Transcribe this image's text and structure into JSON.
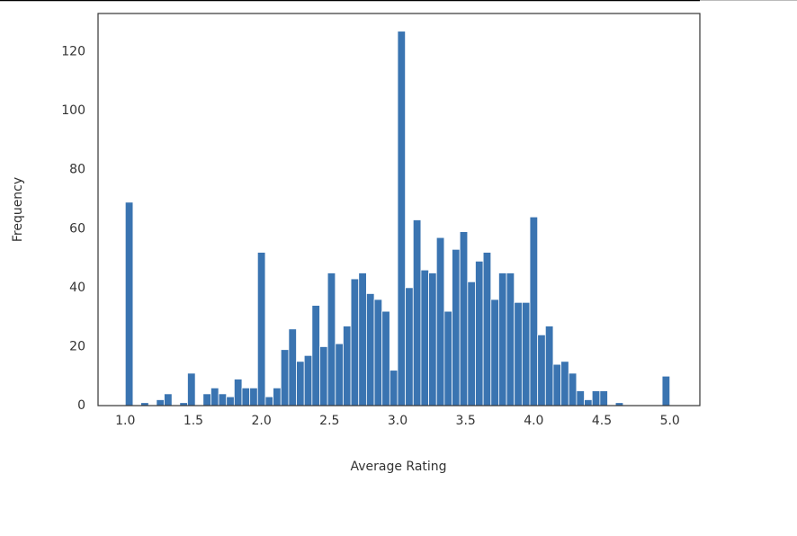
{
  "chart_data": {
    "type": "histogram",
    "x_label": "Average Rating",
    "y_label": "Frequency",
    "color": "#3a74b1",
    "grid": false,
    "bins": [
      1.0,
      1.0571,
      1.1143,
      1.1714,
      1.2286,
      1.2857,
      1.3429,
      1.4,
      1.4571,
      1.5143,
      1.5714,
      1.6286,
      1.6857,
      1.7429,
      1.8,
      1.8571,
      1.9143,
      1.9714,
      2.0286,
      2.0857,
      2.1429,
      2.2,
      2.2571,
      2.3143,
      2.3714,
      2.4286,
      2.4857,
      2.5429,
      2.6,
      2.6571,
      2.7143,
      2.7714,
      2.8286,
      2.8857,
      2.9429,
      3.0,
      3.0571,
      3.1143,
      3.1714,
      3.2286,
      3.2857,
      3.3429,
      3.4,
      3.4571,
      3.5143,
      3.5714,
      3.6286,
      3.6857,
      3.7429,
      3.8,
      3.8571,
      3.9143,
      3.9714,
      4.0286,
      4.0857,
      4.1429,
      4.2,
      4.2571,
      4.3143,
      4.3714,
      4.4286,
      4.4857,
      4.5429,
      4.6,
      4.6571,
      4.7143,
      4.7714,
      4.8286,
      4.8857,
      4.9429,
      5.0
    ],
    "values": [
      69,
      0,
      1,
      0,
      2,
      4,
      0,
      1,
      11,
      0,
      4,
      6,
      4,
      3,
      9,
      6,
      6,
      52,
      3,
      6,
      19,
      26,
      15,
      17,
      34,
      20,
      45,
      21,
      27,
      43,
      45,
      38,
      36,
      32,
      12,
      127,
      40,
      63,
      46,
      45,
      57,
      32,
      53,
      59,
      42,
      49,
      52,
      36,
      45,
      45,
      35,
      35,
      64,
      24,
      27,
      14,
      15,
      11,
      5,
      2,
      5,
      5,
      0,
      1,
      0,
      0,
      0,
      0,
      0,
      10
    ],
    "xlim": [
      0.8,
      5.22
    ],
    "ylim": [
      0,
      133
    ],
    "xticks": [
      {
        "value": 1,
        "label": "1.0"
      },
      1.5,
      {
        "value": 2,
        "label": "2.0"
      },
      2.5,
      {
        "value": 3,
        "label": "3.0"
      },
      3.5,
      {
        "value": 4,
        "label": "4.0"
      },
      4.5,
      {
        "value": 5,
        "label": "5.0"
      }
    ],
    "yticks": [
      0,
      20,
      40,
      60,
      80,
      100,
      120
    ]
  }
}
